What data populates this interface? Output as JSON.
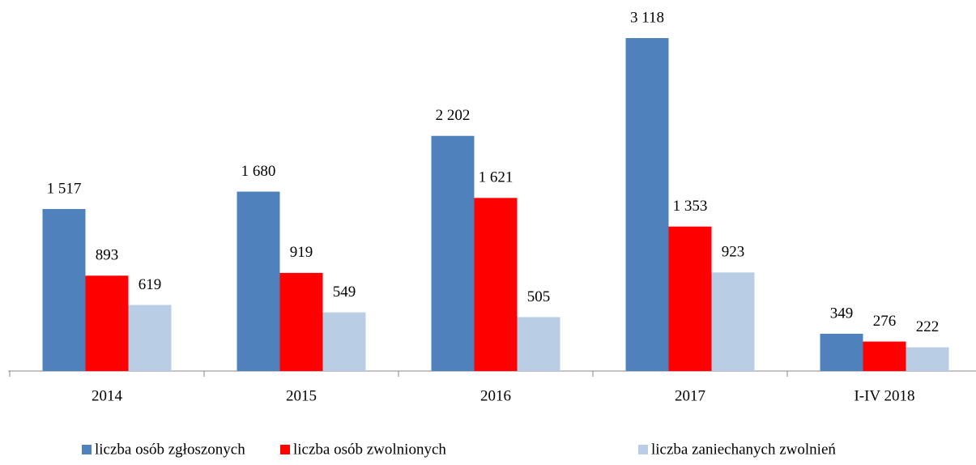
{
  "chart_data": {
    "type": "bar",
    "categories": [
      "2014",
      "2015",
      "2016",
      "2017",
      "I-IV 2018"
    ],
    "series": [
      {
        "name": "liczba osób zgłoszonych",
        "color": "#4f81bd",
        "values": [
          1517,
          1680,
          2202,
          3118,
          349
        ],
        "value_labels": [
          "1 517",
          "1 680",
          "2 202",
          "3 118",
          "349"
        ]
      },
      {
        "name": "liczba osób zwolnionych",
        "color": "#ff0000",
        "values": [
          893,
          919,
          1621,
          1353,
          276
        ],
        "value_labels": [
          "893",
          "919",
          "1 621",
          "1 353",
          "276"
        ]
      },
      {
        "name": "liczba zaniechanych zwolnień",
        "color": "#b9cde5",
        "values": [
          619,
          549,
          505,
          923,
          222
        ],
        "value_labels": [
          "619",
          "549",
          "505",
          "923",
          "222"
        ]
      }
    ],
    "legend": "bottom"
  }
}
